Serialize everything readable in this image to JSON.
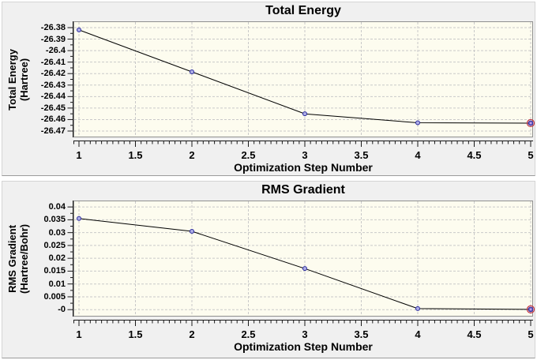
{
  "colors": {
    "page_bg": "#ffffff",
    "panel_bg": "#f0f0f0",
    "plot_bg": "#fdfcef",
    "plot_border": "#8f8f8f",
    "grid": "#c9c9c9",
    "axis": "#1a1a1a",
    "line": "#000000",
    "marker_fill": "#aeaee6",
    "marker_stroke": "#2b2b9e",
    "selected_fill": "#8468cc",
    "selected_ring": "#c0303f",
    "text": "#000000"
  },
  "chart_data": [
    {
      "type": "line",
      "title": "Total Energy",
      "xlabel": "Optimization Step Number",
      "ylabel": "Total Energy (Hartree)",
      "ylabel_lines": [
        "Total Energy",
        "(Hartree)"
      ],
      "x": [
        1,
        2,
        3,
        4,
        5
      ],
      "y": [
        -26.382,
        -26.4185,
        -26.455,
        -26.4628,
        -26.4631
      ],
      "xlim": [
        0.951,
        5.021
      ],
      "ylim": [
        -26.4755,
        -26.3745
      ],
      "x_ticks": {
        "values": [
          1,
          1.5,
          2,
          2.5,
          3,
          3.5,
          4,
          4.5,
          5
        ],
        "labels": [
          "1",
          "1.5",
          "2",
          "2.5",
          "3",
          "3.5",
          "4",
          "4.5",
          "5"
        ]
      },
      "y_ticks": {
        "values": [
          -26.38,
          -26.39,
          -26.4,
          -26.41,
          -26.42,
          -26.43,
          -26.44,
          -26.45,
          -26.46,
          -26.47
        ],
        "labels": [
          "-26.38",
          "-26.39",
          "-26.4",
          "-26.41",
          "-26.42",
          "-26.43",
          "-26.44",
          "-26.45",
          "-26.46",
          "-26.47"
        ]
      },
      "x_minor_step": 0.05,
      "grid": true,
      "legend": "none",
      "selected_index": 4
    },
    {
      "type": "line",
      "title": "RMS Gradient",
      "xlabel": "Optimization Step Number",
      "ylabel": "RMS Gradient (Hartree/Bohr)",
      "ylabel_lines": [
        "RMS Gradient",
        "(Hartree/Bohr)"
      ],
      "x": [
        1,
        2,
        3,
        4,
        5
      ],
      "y": [
        0.0355,
        0.0305,
        0.016,
        0.0004,
        0.0001
      ],
      "xlim": [
        0.951,
        5.021
      ],
      "ylim": [
        -0.0027,
        0.0425
      ],
      "x_ticks": {
        "values": [
          1,
          1.5,
          2,
          2.5,
          3,
          3.5,
          4,
          4.5,
          5
        ],
        "labels": [
          "1",
          "1.5",
          "2",
          "2.5",
          "3",
          "3.5",
          "4",
          "4.5",
          "5"
        ]
      },
      "y_ticks": {
        "values": [
          0.04,
          0.035,
          0.03,
          0.025,
          0.02,
          0.015,
          0.01,
          0.005,
          0
        ],
        "labels": [
          "0.04",
          "0.035",
          "0.03",
          "0.025",
          "0.02",
          "0.015",
          "0.01",
          "0.005",
          "-0"
        ]
      },
      "x_minor_step": 0.05,
      "grid": true,
      "legend": "none",
      "selected_index": 4
    }
  ]
}
